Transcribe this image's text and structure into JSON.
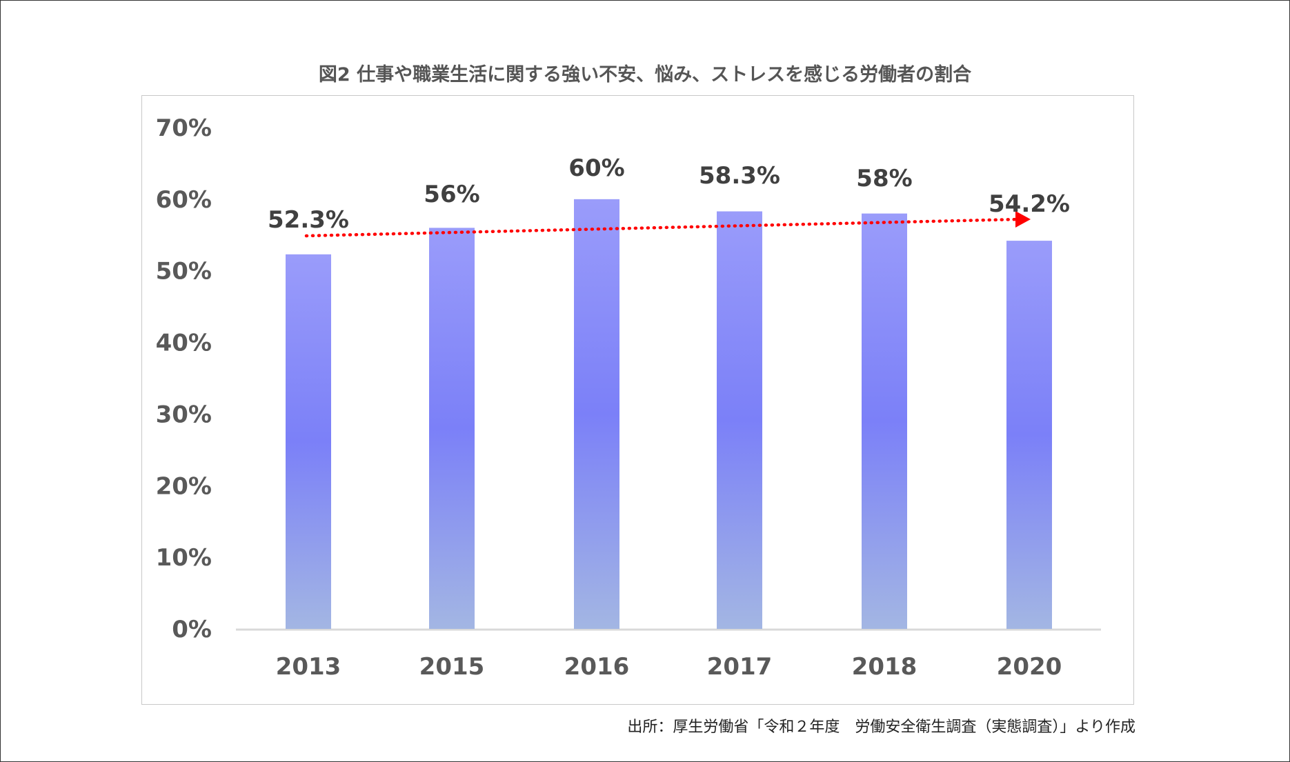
{
  "chart_data": {
    "type": "bar",
    "title": "図2  仕事や職業生活に関する強い不安、悩み、ストレスを感じる労働者の割合",
    "categories": [
      "2013",
      "2015",
      "2016",
      "2017",
      "2018",
      "2020"
    ],
    "values": [
      52.3,
      56,
      60,
      58.3,
      58,
      54.2
    ],
    "data_labels": [
      "52.3%",
      "56%",
      "60%",
      "58.3%",
      "58%",
      "54.2%"
    ],
    "ylim": [
      0,
      70
    ],
    "yticks": [
      "0%",
      "10%",
      "20%",
      "30%",
      "40%",
      "50%",
      "60%",
      "70%"
    ],
    "xlabel": "",
    "ylabel": "",
    "grid": false,
    "trend_line": {
      "style": "dotted-arrow",
      "color": "#ff0000"
    },
    "bar_gradient": {
      "top": "#9a9cfa",
      "middle": "#7b80f8",
      "bottom": "#a3b6e3"
    },
    "source": "出所：厚生労働省「令和２年度　労働安全衛生調査（実態調査）」より作成"
  }
}
